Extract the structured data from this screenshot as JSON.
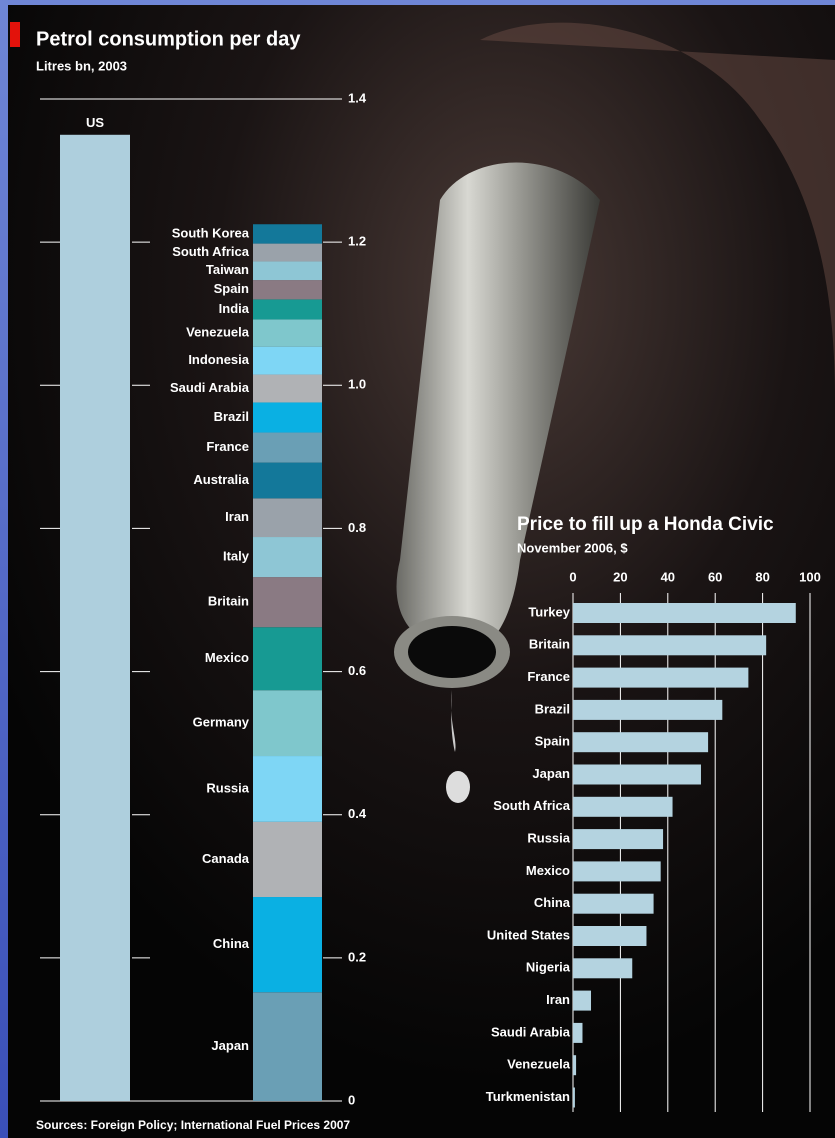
{
  "chart_data": [
    {
      "type": "stacked_column",
      "title": "Petrol consumption per day",
      "subtitle": "Litres bn, 2003",
      "ylim": [
        0,
        1.4
      ],
      "yticks": [
        0,
        0.2,
        0.4,
        0.6,
        0.8,
        {
          "value": 1,
          "label": "1.0"
        },
        1.2,
        1.4
      ],
      "columns": [
        {
          "series": [
            {
              "name": "US",
              "color": "#aecfdd",
              "value": 1.35
            }
          ]
        },
        {
          "series": [
            {
              "name": "Japan",
              "color": "#6a9fb5",
              "value": 0.152
            },
            {
              "name": "China",
              "color": "#0ab0e3",
              "value": 0.133
            },
            {
              "name": "Canada",
              "color": "#b0b2b5",
              "value": 0.105
            },
            {
              "name": "Russia",
              "color": "#7ed6f5",
              "value": 0.092
            },
            {
              "name": "Germany",
              "color": "#7fc7cc",
              "value": 0.092
            },
            {
              "name": "Mexico",
              "color": "#179a93",
              "value": 0.088
            },
            {
              "name": "Britain",
              "color": "#8a7a83",
              "value": 0.07
            },
            {
              "name": "Italy",
              "color": "#8ec6d5",
              "value": 0.056
            },
            {
              "name": "Iran",
              "color": "#9aa2aa",
              "value": 0.054
            },
            {
              "name": "Australia",
              "color": "#13789a",
              "value": 0.05
            },
            {
              "name": "France",
              "color": "#6a9fb5",
              "value": 0.042
            },
            {
              "name": "Brazil",
              "color": "#0ab0e3",
              "value": 0.042
            },
            {
              "name": "Saudi Arabia",
              "color": "#b0b2b5",
              "value": 0.039
            },
            {
              "name": "Indonesia",
              "color": "#7ed6f5",
              "value": 0.039
            },
            {
              "name": "Venezuela",
              "color": "#7fc7cc",
              "value": 0.038
            },
            {
              "name": "India",
              "color": "#179a93",
              "value": 0.028
            },
            {
              "name": "Spain",
              "color": "#8a7a83",
              "value": 0.027
            },
            {
              "name": "Taiwan",
              "color": "#8ec6d5",
              "value": 0.026
            },
            {
              "name": "South Africa",
              "color": "#9aa2aa",
              "value": 0.025
            },
            {
              "name": "South Korea",
              "color": "#13789a",
              "value": 0.027
            }
          ]
        }
      ]
    },
    {
      "type": "hbar",
      "title": "Price to fill up a Honda Civic",
      "subtitle": "November 2006, $",
      "color": "#b4d3e0",
      "xlim": [
        0,
        100
      ],
      "xticks": [
        0,
        20,
        40,
        60,
        80,
        100
      ],
      "categories": [
        "Turkey",
        "Britain",
        "France",
        "Brazil",
        "Spain",
        "Japan",
        "South Africa",
        "Russia",
        "Mexico",
        "China",
        "United States",
        "Nigeria",
        "Iran",
        "Saudi Arabia",
        "Venezuela",
        "Turkmenistan"
      ],
      "values": [
        94,
        81.5,
        74,
        63,
        57,
        54,
        42,
        38,
        37,
        34,
        31,
        25,
        7.6,
        4,
        1.3,
        0.8
      ]
    }
  ],
  "source": "Sources: Foreign Policy; International Fuel Prices 2007"
}
